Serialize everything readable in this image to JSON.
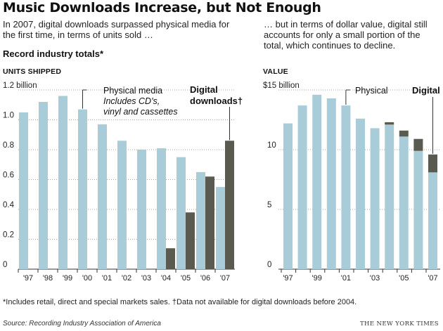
{
  "title": "Music Downloads Increase, but Not Enough",
  "intro_left": "In 2007, digital downloads surpassed physical media for the first time, in terms of units sold …",
  "intro_right": "… but in terms of dollar value, digital still accounts for only a small portion of the total, which continues to decline.",
  "section_heading": "Record industry totals*",
  "footnote": "*Includes retail, direct and special markets sales. †Data not available for digital downloads before 2004.",
  "source": "Source: Recording Industry Association of America",
  "credit": "THE NEW YORK TIMES",
  "colors": {
    "physical": "#a9cdd8",
    "digital": "#5a5a50",
    "gridline": "#888888"
  },
  "chart_data": [
    {
      "type": "bar",
      "title": "UNITS SHIPPED",
      "x": [
        1997,
        1998,
        1999,
        2000,
        2001,
        2002,
        2003,
        2004,
        2005,
        2006,
        2007
      ],
      "tick_labels": [
        "'97",
        "'98",
        "'99",
        "'00",
        "'01",
        "'02",
        "'03",
        "'04",
        "'05",
        "'06",
        "'07"
      ],
      "y_ticks": [
        "1.2 billion",
        "1.0",
        "0.8",
        "0.6",
        "0.4",
        "0.2",
        "0"
      ],
      "y_tick_values": [
        1.2,
        1.0,
        0.8,
        0.6,
        0.4,
        0.2,
        0
      ],
      "ylim": [
        0,
        1.2
      ],
      "grid": true,
      "layout": "grouped",
      "series": [
        {
          "name": "Physical media",
          "note": "Includes CD's, vinyl and cassettes",
          "values": [
            1.05,
            1.12,
            1.16,
            1.07,
            0.97,
            0.86,
            0.8,
            0.81,
            0.75,
            0.65,
            0.55
          ]
        },
        {
          "name": "Digital downloads†",
          "values": [
            null,
            null,
            null,
            null,
            null,
            null,
            null,
            0.14,
            0.38,
            0.62,
            0.86
          ]
        }
      ]
    },
    {
      "type": "bar",
      "title": "VALUE",
      "x": [
        1997,
        1998,
        1999,
        2000,
        2001,
        2002,
        2003,
        2004,
        2005,
        2006,
        2007
      ],
      "tick_labels": [
        "'97",
        "'99",
        "'01",
        "'03",
        "'05",
        "'07"
      ],
      "tick_years": [
        1997,
        1999,
        2001,
        2003,
        2005,
        2007
      ],
      "y_ticks": [
        "$15 billion",
        "10",
        "5",
        "0"
      ],
      "y_tick_values": [
        15,
        10,
        5,
        0
      ],
      "ylim": [
        0,
        15
      ],
      "grid": true,
      "layout": "stacked",
      "series": [
        {
          "name": "Physical",
          "values": [
            12.2,
            13.7,
            14.6,
            14.3,
            13.7,
            12.6,
            11.8,
            12.1,
            11.1,
            9.9,
            8.1
          ]
        },
        {
          "name": "Digital",
          "values": [
            null,
            null,
            null,
            null,
            null,
            null,
            null,
            0.2,
            0.5,
            1.0,
            1.5
          ]
        }
      ]
    }
  ]
}
